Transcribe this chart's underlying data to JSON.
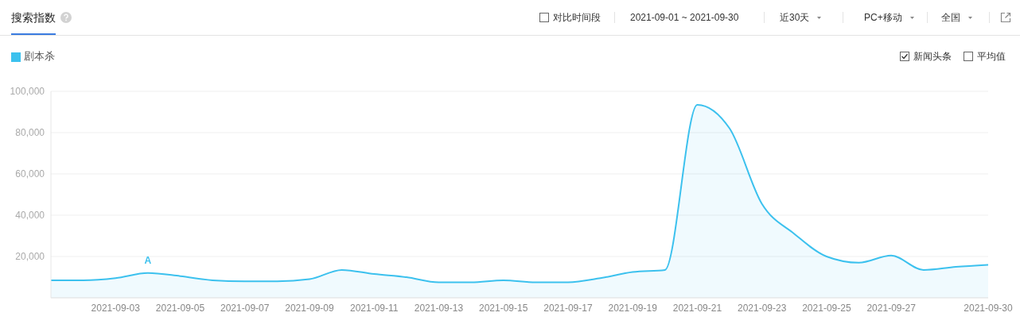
{
  "chart_data": {
    "type": "area",
    "title": "搜索指数",
    "x": [
      "2021-09-01",
      "2021-09-02",
      "2021-09-03",
      "2021-09-04",
      "2021-09-05",
      "2021-09-06",
      "2021-09-07",
      "2021-09-08",
      "2021-09-09",
      "2021-09-10",
      "2021-09-11",
      "2021-09-12",
      "2021-09-13",
      "2021-09-14",
      "2021-09-15",
      "2021-09-16",
      "2021-09-17",
      "2021-09-18",
      "2021-09-19",
      "2021-09-20",
      "2021-09-21",
      "2021-09-22",
      "2021-09-23",
      "2021-09-24",
      "2021-09-25",
      "2021-09-26",
      "2021-09-27",
      "2021-09-28",
      "2021-09-29",
      "2021-09-30"
    ],
    "series": [
      {
        "name": "剧本杀",
        "color": "#3cc1ee",
        "values": [
          8500,
          8500,
          9500,
          12000,
          10500,
          8500,
          8000,
          8000,
          9000,
          13500,
          11500,
          10000,
          7500,
          7500,
          8500,
          7500,
          7500,
          9500,
          12500,
          13500,
          93500,
          82000,
          45500,
          31000,
          20000,
          17000,
          20500,
          13500,
          15000,
          16000
        ]
      }
    ],
    "xlim": [
      "2021-09-01",
      "2021-09-30"
    ],
    "xticks": [
      "2021-09-03",
      "2021-09-05",
      "2021-09-07",
      "2021-09-09",
      "2021-09-11",
      "2021-09-13",
      "2021-09-15",
      "2021-09-17",
      "2021-09-19",
      "2021-09-21",
      "2021-09-23",
      "2021-09-25",
      "2021-09-27",
      "2021-09-30"
    ],
    "ylim": [
      0,
      100000
    ],
    "yticks": [
      {
        "value": 20000,
        "label": "20,000"
      },
      {
        "value": 40000,
        "label": "40,000"
      },
      {
        "value": 60000,
        "label": "60,000"
      },
      {
        "value": 80000,
        "label": "80,000"
      },
      {
        "value": 100000,
        "label": "100,000"
      }
    ],
    "grid": "y",
    "legend": "top left",
    "annotations": [
      {
        "text": "A",
        "x": "2021-09-04",
        "y": 12000
      },
      "对比时间段",
      "2021-09-01 ~ 2021-09-30",
      "近30天",
      "PC+移动",
      "全国",
      "新闻头条",
      "平均值"
    ]
  }
}
